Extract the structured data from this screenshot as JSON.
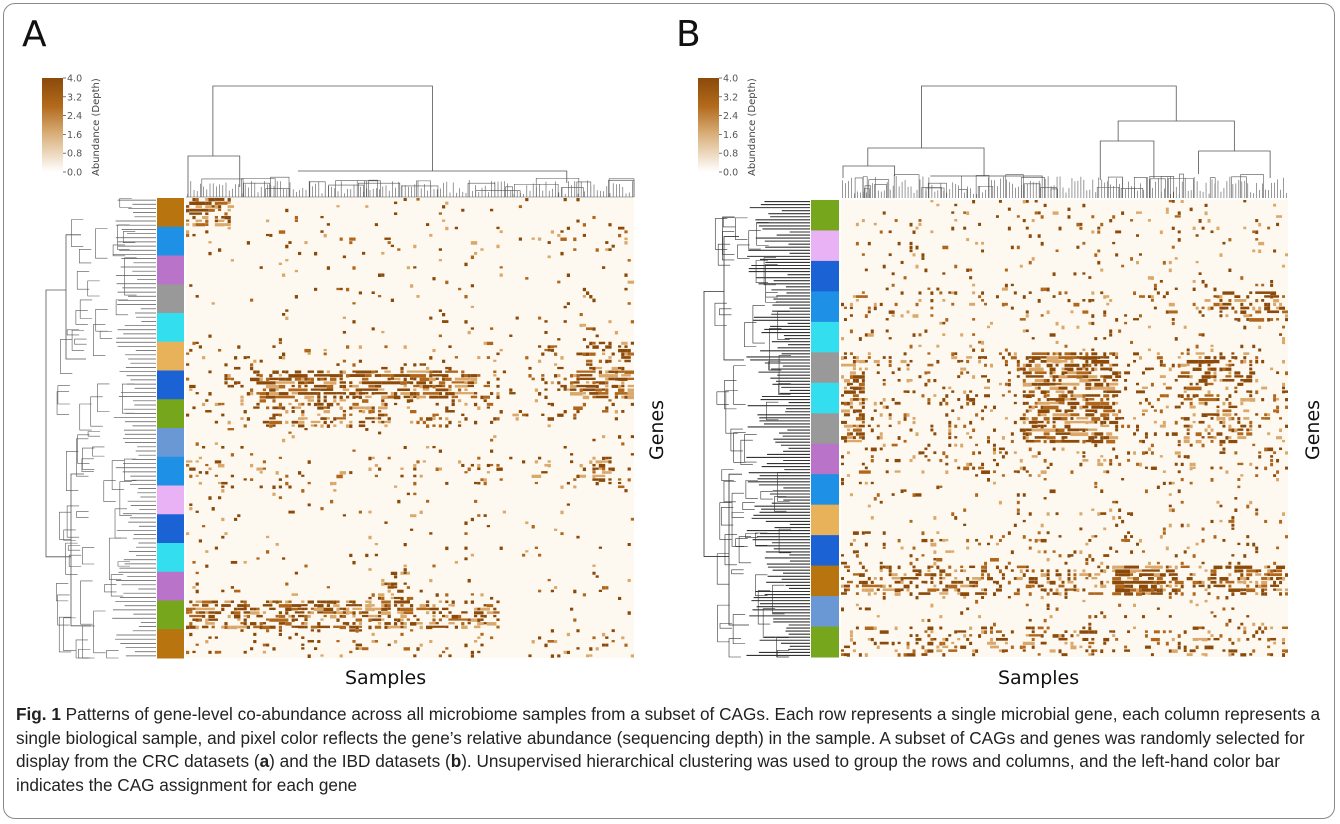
{
  "panels": [
    {
      "letter": "A",
      "xlabel": "Samples",
      "ylabel": "Genes",
      "colorbar": {
        "label": "Abundance (Depth)",
        "ticks": [
          "4.0",
          "3.2",
          "2.4",
          "1.6",
          "0.8",
          "0.0"
        ],
        "min": 0.0,
        "max": 4.0,
        "color_high": "#8b4a0a",
        "color_low": "#ffffff"
      },
      "cag_colors": [
        "#b8740f",
        "#1e90e6",
        "#b974c9",
        "#999999",
        "#33dfee",
        "#e8b25a",
        "#1b63d4",
        "#76a61c",
        "#6a98d4",
        "#1e90e6",
        "#e8b2f5",
        "#1b63d4",
        "#33dfee",
        "#b974c9",
        "#76a61c",
        "#b8740f"
      ]
    },
    {
      "letter": "B",
      "xlabel": "Samples",
      "ylabel": "Genes",
      "colorbar": {
        "label": "Abundance (Depth)",
        "ticks": [
          "4.0",
          "3.2",
          "2.4",
          "1.6",
          "0.8",
          "0.0"
        ],
        "min": 0.0,
        "max": 4.0,
        "color_high": "#8b4a0a",
        "color_low": "#ffffff"
      },
      "cag_colors": [
        "#76a61c",
        "#e8b2f5",
        "#1b63d4",
        "#1e90e6",
        "#33dfee",
        "#999999",
        "#33dfee",
        "#999999",
        "#b974c9",
        "#1e90e6",
        "#e8b25a",
        "#1b63d4",
        "#b8740f",
        "#6a98d4",
        "#76a61c"
      ]
    }
  ],
  "caption": {
    "label": "Fig. 1",
    "text_1": " Patterns of gene-level co-abundance across all microbiome samples from a subset of CAGs. Each row represents a single microbial gene, each column represents a single biological sample, and pixel color reflects the gene’s relative abundance (sequencing depth) in the sample. A subset of CAGs and genes was randomly selected for display from the CRC datasets (",
    "ref_a": "a",
    "text_2": ") and the IBD datasets (",
    "ref_b": "b",
    "text_3": "). Unsupervised hierarchical clustering was used to group the rows and columns, and the left-hand color bar indicates the CAG assignment for each gene"
  }
}
